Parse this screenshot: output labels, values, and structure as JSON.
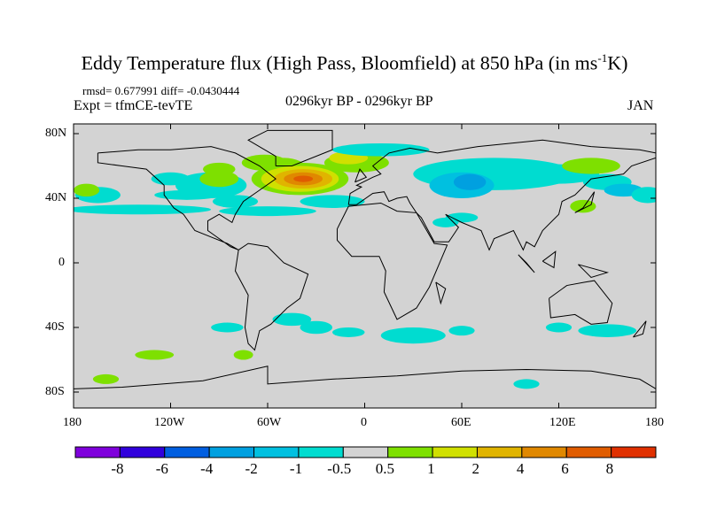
{
  "title": {
    "main": "Eddy Temperature flux (High Pass, Bloomfield) at 850 hPa (in ms",
    "sup": "-1",
    "end": "K)"
  },
  "rmsd_text": "rmsd= 0.677991 diff= -0.0430444",
  "experiment": "Expt = tfmCE-tevTE",
  "period": "0296kyr BP - 0296kyr BP",
  "month": "JAN",
  "lat_labels": [
    "80N",
    "40N",
    "0",
    "40S",
    "80S"
  ],
  "lon_labels": [
    "180",
    "120W",
    "60W",
    "0",
    "60E",
    "120E",
    "180"
  ],
  "colorbar": {
    "colors": [
      "#7f00dc",
      "#3100dc",
      "#005ee0",
      "#00a0e0",
      "#00c0e0",
      "#00dcd0",
      "#d3d3d3",
      "#7ee000",
      "#d0e000",
      "#e0b400",
      "#e08800",
      "#e05c00",
      "#e03000"
    ],
    "labels": [
      "-8",
      "-6",
      "-4",
      "-2",
      "-1",
      "-0.5",
      "0.5",
      "1",
      "2",
      "4",
      "6",
      "8"
    ]
  },
  "background_color": "#d3d3d3"
}
